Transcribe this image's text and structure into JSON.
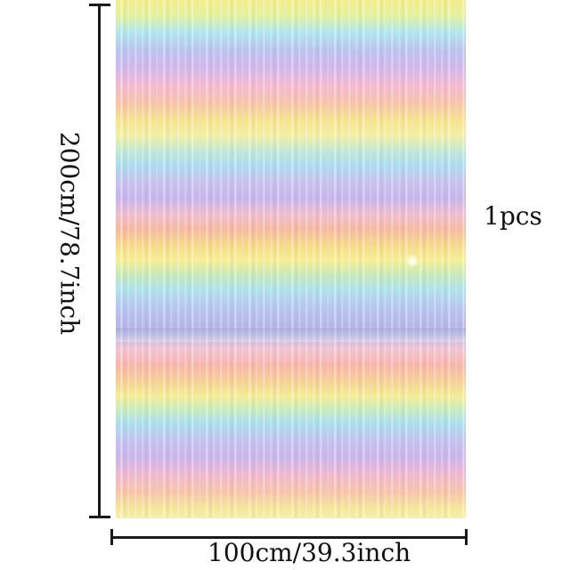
{
  "product": {
    "quantity_label": "1pcs"
  },
  "dimensions": {
    "height_label": "200cm/78.7inch",
    "width_label": "100cm/39.3inch"
  },
  "colors": {
    "yellow": "#f6ee8a",
    "blue": "#aee3ea",
    "lavender": "#c7b4ec",
    "pink": "#f5b9cf",
    "peach": "#f7b99c",
    "line": "#1a1a1a"
  }
}
